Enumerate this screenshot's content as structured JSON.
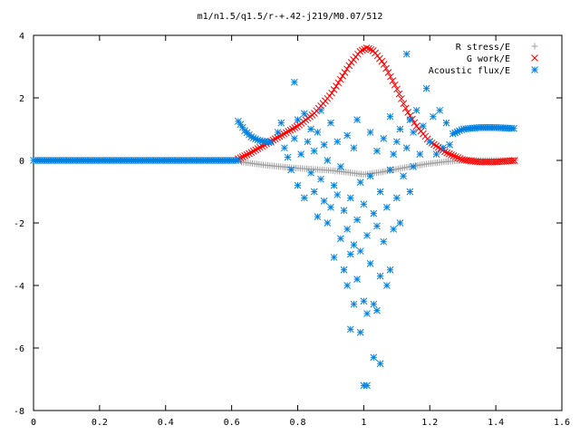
{
  "chart_data": {
    "type": "scatter",
    "title": "m1/n1.5/q1.5/r-+.42-j219/M0.07/512",
    "xlabel": "",
    "ylabel": "",
    "xlim": [
      0,
      1.6
    ],
    "ylim": [
      -8,
      4
    ],
    "xticks": [
      0,
      0.2,
      0.4,
      0.6,
      0.8,
      1,
      1.2,
      1.4,
      1.6
    ],
    "yticks": [
      -8,
      -6,
      -4,
      -2,
      0,
      2,
      4
    ],
    "xtick_labels": [
      "0",
      "0.2",
      "0.4",
      "0.6",
      "0.8",
      "1",
      "1.2",
      "1.4",
      "1.6"
    ],
    "ytick_labels": [
      "-8",
      "-6",
      "-4",
      "-2",
      "0",
      "2",
      "4"
    ],
    "grid": false,
    "legend_position": "top-right",
    "series": [
      {
        "name": "R stress/E",
        "marker": "plus",
        "color": "#a0a0a0",
        "curve": [
          [
            0.63,
            -0.05
          ],
          [
            0.7,
            -0.15
          ],
          [
            0.8,
            -0.25
          ],
          [
            0.9,
            -0.32
          ],
          [
            0.95,
            -0.38
          ],
          [
            1.0,
            -0.45
          ],
          [
            1.05,
            -0.38
          ],
          [
            1.1,
            -0.28
          ],
          [
            1.15,
            -0.18
          ],
          [
            1.2,
            -0.1
          ],
          [
            1.25,
            -0.04
          ],
          [
            1.3,
            0.0
          ],
          [
            1.46,
            0.0
          ]
        ]
      },
      {
        "name": "G work/E",
        "marker": "cross",
        "color": "#ff0000",
        "curve": [
          [
            0.62,
            0.05
          ],
          [
            0.65,
            0.2
          ],
          [
            0.7,
            0.5
          ],
          [
            0.75,
            0.8
          ],
          [
            0.8,
            1.1
          ],
          [
            0.85,
            1.5
          ],
          [
            0.9,
            2.1
          ],
          [
            0.93,
            2.6
          ],
          [
            0.96,
            3.1
          ],
          [
            0.99,
            3.5
          ],
          [
            1.01,
            3.6
          ],
          [
            1.03,
            3.5
          ],
          [
            1.06,
            3.1
          ],
          [
            1.1,
            2.3
          ],
          [
            1.13,
            1.6
          ],
          [
            1.16,
            1.1
          ],
          [
            1.2,
            0.6
          ],
          [
            1.25,
            0.25
          ],
          [
            1.3,
            0.02
          ],
          [
            1.35,
            -0.05
          ],
          [
            1.4,
            -0.05
          ],
          [
            1.46,
            0.0
          ]
        ]
      },
      {
        "name": "Acoustic flux/E",
        "marker": "star",
        "color": "#0080e0",
        "flat_segment": {
          "x": [
            0.0,
            0.62
          ],
          "y": 0.0
        },
        "left_branch": [
          [
            0.62,
            1.25
          ],
          [
            0.64,
            0.95
          ],
          [
            0.66,
            0.75
          ],
          [
            0.68,
            0.65
          ],
          [
            0.7,
            0.6
          ],
          [
            0.72,
            0.58
          ]
        ],
        "right_branch": [
          [
            1.27,
            0.85
          ],
          [
            1.3,
            1.0
          ],
          [
            1.35,
            1.05
          ],
          [
            1.4,
            1.05
          ],
          [
            1.46,
            1.02
          ]
        ],
        "points": [
          [
            0.74,
            0.9
          ],
          [
            0.75,
            1.2
          ],
          [
            0.76,
            0.4
          ],
          [
            0.77,
            0.1
          ],
          [
            0.78,
            -0.3
          ],
          [
            0.79,
            2.5
          ],
          [
            0.79,
            0.7
          ],
          [
            0.8,
            1.3
          ],
          [
            0.8,
            -0.8
          ],
          [
            0.81,
            0.2
          ],
          [
            0.82,
            1.5
          ],
          [
            0.82,
            -1.2
          ],
          [
            0.83,
            0.6
          ],
          [
            0.84,
            -0.4
          ],
          [
            0.84,
            1.0
          ],
          [
            0.85,
            -1.0
          ],
          [
            0.85,
            0.3
          ],
          [
            0.86,
            -1.8
          ],
          [
            0.86,
            0.9
          ],
          [
            0.87,
            -0.6
          ],
          [
            0.87,
            1.6
          ],
          [
            0.88,
            -1.3
          ],
          [
            0.88,
            0.5
          ],
          [
            0.89,
            -2.0
          ],
          [
            0.89,
            0.0
          ],
          [
            0.9,
            -1.5
          ],
          [
            0.9,
            1.2
          ],
          [
            0.91,
            -0.8
          ],
          [
            0.91,
            -3.1
          ],
          [
            0.92,
            -1.1
          ],
          [
            0.92,
            0.6
          ],
          [
            0.93,
            -2.5
          ],
          [
            0.93,
            -0.2
          ],
          [
            0.94,
            -3.5
          ],
          [
            0.94,
            -1.6
          ],
          [
            0.95,
            -4.0
          ],
          [
            0.95,
            -2.2
          ],
          [
            0.95,
            0.8
          ],
          [
            0.96,
            -5.4
          ],
          [
            0.96,
            -3.0
          ],
          [
            0.96,
            -1.2
          ],
          [
            0.97,
            -4.6
          ],
          [
            0.97,
            -2.7
          ],
          [
            0.97,
            0.4
          ],
          [
            0.98,
            -3.8
          ],
          [
            0.98,
            -1.9
          ],
          [
            0.98,
            1.3
          ],
          [
            0.99,
            -5.5
          ],
          [
            0.99,
            -2.9
          ],
          [
            0.99,
            -0.7
          ],
          [
            1.0,
            -4.5
          ],
          [
            1.0,
            -7.2
          ],
          [
            1.0,
            -1.4
          ],
          [
            1.01,
            -7.2
          ],
          [
            1.01,
            -4.9
          ],
          [
            1.01,
            -2.4
          ],
          [
            1.02,
            -3.3
          ],
          [
            1.02,
            -0.5
          ],
          [
            1.02,
            0.9
          ],
          [
            1.03,
            -6.3
          ],
          [
            1.03,
            -4.6
          ],
          [
            1.03,
            -1.7
          ],
          [
            1.04,
            -4.8
          ],
          [
            1.04,
            -2.1
          ],
          [
            1.04,
            0.3
          ],
          [
            1.05,
            -6.5
          ],
          [
            1.05,
            -3.7
          ],
          [
            1.05,
            -1.0
          ],
          [
            1.06,
            -2.6
          ],
          [
            1.06,
            0.7
          ],
          [
            1.07,
            -4.0
          ],
          [
            1.07,
            -1.5
          ],
          [
            1.08,
            -3.5
          ],
          [
            1.08,
            -0.3
          ],
          [
            1.08,
            1.4
          ],
          [
            1.09,
            -2.2
          ],
          [
            1.09,
            0.2
          ],
          [
            1.1,
            -1.2
          ],
          [
            1.1,
            0.6
          ],
          [
            1.11,
            -2.0
          ],
          [
            1.11,
            1.0
          ],
          [
            1.12,
            -0.5
          ],
          [
            1.13,
            3.4
          ],
          [
            1.13,
            0.4
          ],
          [
            1.14,
            -1.0
          ],
          [
            1.14,
            1.3
          ],
          [
            1.15,
            -0.2
          ],
          [
            1.15,
            0.9
          ],
          [
            1.16,
            1.6
          ],
          [
            1.17,
            0.2
          ],
          [
            1.18,
            1.1
          ],
          [
            1.19,
            2.3
          ],
          [
            1.2,
            0.6
          ],
          [
            1.21,
            1.4
          ],
          [
            1.22,
            0.2
          ],
          [
            1.23,
            1.6
          ],
          [
            1.24,
            0.4
          ],
          [
            1.25,
            1.2
          ],
          [
            1.26,
            0.5
          ]
        ]
      }
    ]
  }
}
